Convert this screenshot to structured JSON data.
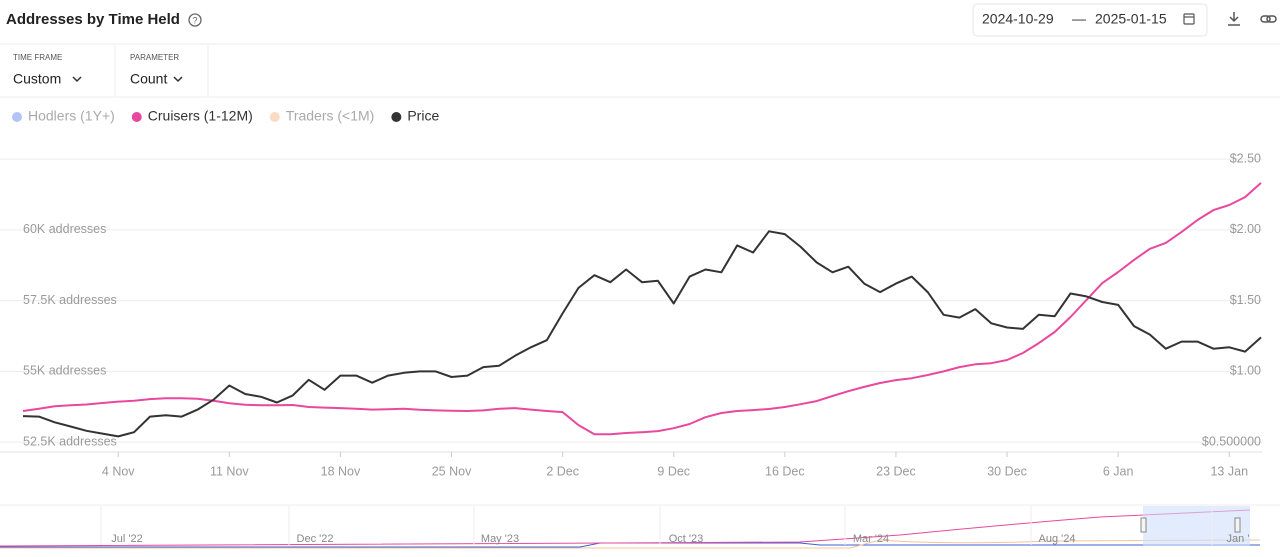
{
  "header": {
    "title": "Addresses by Time Held",
    "date_from": "2024-10-29",
    "date_sep": "—",
    "date_to": "2025-01-15"
  },
  "controls": [
    {
      "label": "TIME FRAME",
      "value": "Custom"
    },
    {
      "label": "PARAMETER",
      "value": "Count"
    }
  ],
  "navigator": {
    "labels": [
      "Jul '22",
      "Dec '22",
      "May '23",
      "Oct '23",
      "Mar '24",
      "Aug '24",
      "Jan '"
    ]
  },
  "chart_data": {
    "type": "line",
    "x": [
      "29 Oct",
      "30 Oct",
      "31 Oct",
      "1 Nov",
      "2 Nov",
      "3 Nov",
      "4 Nov",
      "5 Nov",
      "6 Nov",
      "7 Nov",
      "8 Nov",
      "9 Nov",
      "10 Nov",
      "11 Nov",
      "12 Nov",
      "13 Nov",
      "14 Nov",
      "15 Nov",
      "16 Nov",
      "17 Nov",
      "18 Nov",
      "19 Nov",
      "20 Nov",
      "21 Nov",
      "22 Nov",
      "23 Nov",
      "24 Nov",
      "25 Nov",
      "26 Nov",
      "27 Nov",
      "28 Nov",
      "29 Nov",
      "30 Nov",
      "1 Dec",
      "2 Dec",
      "3 Dec",
      "4 Dec",
      "5 Dec",
      "6 Dec",
      "7 Dec",
      "8 Dec",
      "9 Dec",
      "10 Dec",
      "11 Dec",
      "12 Dec",
      "13 Dec",
      "14 Dec",
      "15 Dec",
      "16 Dec",
      "17 Dec",
      "18 Dec",
      "19 Dec",
      "20 Dec",
      "21 Dec",
      "22 Dec",
      "23 Dec",
      "24 Dec",
      "25 Dec",
      "26 Dec",
      "27 Dec",
      "28 Dec",
      "29 Dec",
      "30 Dec",
      "31 Dec",
      "1 Jan",
      "2 Jan",
      "3 Jan",
      "4 Jan",
      "5 Jan",
      "6 Jan",
      "7 Jan",
      "8 Jan",
      "9 Jan",
      "10 Jan",
      "11 Jan",
      "12 Jan",
      "13 Jan",
      "14 Jan",
      "15 Jan"
    ],
    "xticks": [
      "4 Nov",
      "11 Nov",
      "18 Nov",
      "25 Nov",
      "2 Dec",
      "9 Dec",
      "16 Dec",
      "23 Dec",
      "30 Dec",
      "6 Jan",
      "13 Jan"
    ],
    "ylim": [
      52150,
      63000
    ],
    "yticks": [
      {
        "value": 52500,
        "label": "52.5K addresses"
      },
      {
        "value": 55000,
        "label": "55K addresses"
      },
      {
        "value": 57500,
        "label": "57.5K addresses"
      },
      {
        "value": 60000,
        "label": "60K addresses"
      }
    ],
    "y2lim": [
      0.43,
      2.6
    ],
    "y2ticks": [
      {
        "value": 0.5,
        "label": "$0.500000"
      },
      {
        "value": 1,
        "label": "$1.00"
      },
      {
        "value": 1.5,
        "label": "$1.50"
      },
      {
        "value": 2,
        "label": "$2.00"
      },
      {
        "value": 2.5,
        "label": "$2.50"
      }
    ],
    "grid": true,
    "series": [
      {
        "name": "Hodlers (1Y+)",
        "color": "#7b9cf0",
        "visible": false
      },
      {
        "name": "Cruisers (1-12M)",
        "color": "#e8489e",
        "visible": true,
        "values": [
          53600,
          53680,
          53770,
          53800,
          53830,
          53880,
          53930,
          53960,
          54020,
          54050,
          54050,
          54030,
          53960,
          53870,
          53820,
          53800,
          53800,
          53810,
          53740,
          53720,
          53700,
          53680,
          53650,
          53660,
          53680,
          53640,
          53620,
          53610,
          53600,
          53620,
          53680,
          53700,
          53650,
          53600,
          53560,
          53100,
          52780,
          52780,
          52820,
          52850,
          52890,
          52990,
          53140,
          53380,
          53530,
          53600,
          53630,
          53670,
          53740,
          53840,
          53950,
          54130,
          54300,
          54450,
          54590,
          54690,
          54760,
          54870,
          55000,
          55150,
          55250,
          55290,
          55400,
          55650,
          56000,
          56390,
          56920,
          57520,
          58120,
          58510,
          58940,
          59330,
          59540,
          59930,
          60350,
          60700,
          60880,
          61160,
          61660
        ]
      },
      {
        "name": "Traders (<1M)",
        "color": "#f5c49a",
        "visible": false
      },
      {
        "name": "Price",
        "color": "#333333",
        "visible": true,
        "axis": "y2",
        "values": [
          0.684,
          0.68,
          0.64,
          0.61,
          0.58,
          0.56,
          0.54,
          0.57,
          0.68,
          0.69,
          0.68,
          0.73,
          0.8,
          0.9,
          0.84,
          0.82,
          0.78,
          0.83,
          0.94,
          0.87,
          0.97,
          0.97,
          0.92,
          0.97,
          0.99,
          1.0,
          1.0,
          0.96,
          0.97,
          1.03,
          1.04,
          1.11,
          1.17,
          1.22,
          1.41,
          1.59,
          1.68,
          1.63,
          1.72,
          1.63,
          1.64,
          1.48,
          1.67,
          1.72,
          1.7,
          1.89,
          1.84,
          1.99,
          1.97,
          1.88,
          1.77,
          1.7,
          1.74,
          1.62,
          1.56,
          1.62,
          1.67,
          1.56,
          1.4,
          1.38,
          1.44,
          1.34,
          1.31,
          1.3,
          1.4,
          1.39,
          1.55,
          1.53,
          1.49,
          1.47,
          1.32,
          1.26,
          1.16,
          1.21,
          1.21,
          1.16,
          1.17,
          1.14,
          1.24
        ]
      }
    ]
  }
}
